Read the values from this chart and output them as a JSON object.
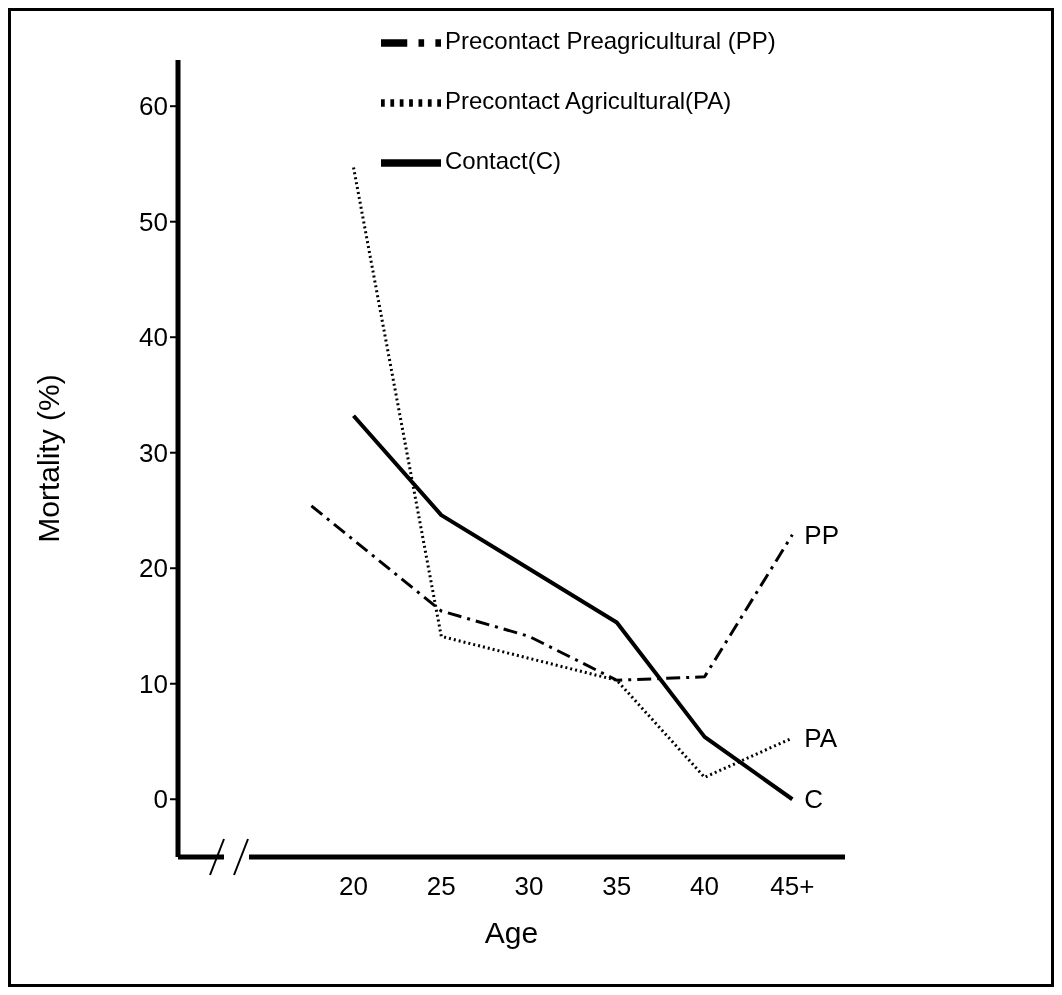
{
  "chart_data": {
    "type": "line",
    "xlabel": "Age",
    "ylabel": "Mortality (%)",
    "xlim": [
      10,
      48
    ],
    "xticks": [
      20,
      25,
      30,
      35,
      40,
      {
        "value": 45,
        "label": "45+"
      }
    ],
    "ylim": [
      -5,
      64
    ],
    "yticks": [
      0,
      10,
      20,
      30,
      40,
      50,
      60
    ],
    "grid": false,
    "legend": "top right",
    "marker": "none",
    "series": [
      {
        "name": "Precontact Preagricultural (PP)",
        "color": "#000000",
        "line_style": "dashdot",
        "x": [
          17.6,
          25,
          30,
          35,
          40,
          45
        ],
        "values": [
          25.4,
          16.3,
          14.1,
          10.3,
          10.6,
          22.9
        ]
      },
      {
        "name": "Precontact Agricultural(PA)",
        "color": "#000000",
        "line_style": "dotted",
        "x": [
          20,
          25,
          35,
          40,
          45
        ],
        "values": [
          54.7,
          14.1,
          10.3,
          1.9,
          5.3
        ]
      },
      {
        "name": "Contact(C)",
        "color": "#000000",
        "line_style": "solid",
        "x": [
          20,
          25,
          35,
          40,
          45
        ],
        "values": [
          33.2,
          24.6,
          15.3,
          5.4,
          0
        ]
      }
    ],
    "annotations": [
      "PP",
      "PA",
      "C"
    ]
  }
}
